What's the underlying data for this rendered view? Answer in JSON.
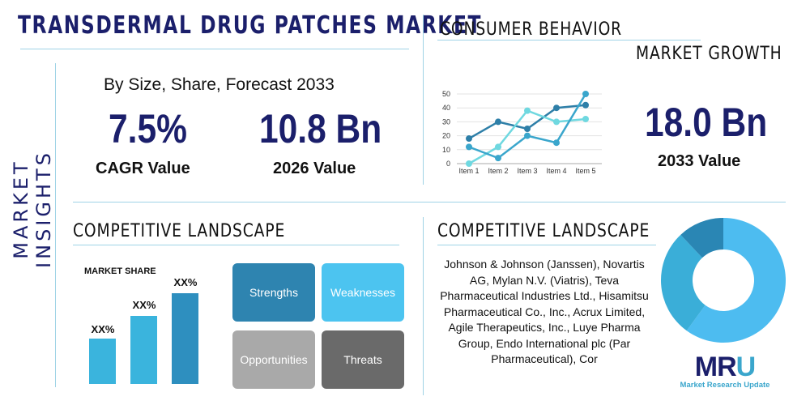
{
  "title": "TRANSDERMAL DRUG PATCHES MARKET",
  "side_label": "MARKET INSIGHTS",
  "subtitle": "By Size, Share, Forecast 2033",
  "cagr": {
    "value": "7.5%",
    "label": "CAGR Value"
  },
  "value2026": {
    "value": "10.8 Bn",
    "label": "2026 Value"
  },
  "consumer": {
    "title": "CONSUMER BEHAVIOR",
    "subtitle": "MARKET GROWTH"
  },
  "value2033": {
    "value": "18.0 Bn",
    "label": "2033 Value"
  },
  "competitive_left": {
    "title": "COMPETITIVE LANDSCAPE",
    "market_share_label": "MARKET SHARE",
    "bar_labels": [
      "XX%",
      "XX%",
      "XX%"
    ]
  },
  "swot": {
    "strengths": "Strengths",
    "weaknesses": "Weaknesses",
    "opportunities": "Opportunities",
    "threats": "Threats"
  },
  "competitive_right": {
    "title": "COMPETITIVE LANDSCAPE",
    "text": "Johnson & Johnson (Janssen), Novartis AG, Mylan N.V. (Viatris), Teva Pharmaceutical Industries Ltd., Hisamitsu Pharmaceutical Co., Inc., Acrux Limited, Agile Therapeutics, Inc., Luye Pharma Group, Endo International plc (Par Pharmaceutical), Cor"
  },
  "logo": {
    "text": "MRU",
    "caption": "Market Research Update"
  },
  "colors": {
    "navy": "#1b1f6b",
    "dark": "#2e7fa8",
    "mid": "#3aa6cc",
    "light": "#6fd8e0",
    "sky": "#4dbcf0"
  },
  "chart_data": [
    {
      "type": "line",
      "categories": [
        "Item 1",
        "Item 2",
        "Item 3",
        "Item 4",
        "Item 5"
      ],
      "ylim": [
        0,
        50
      ],
      "yticks": [
        0,
        10,
        20,
        30,
        40,
        50
      ],
      "series": [
        {
          "values": [
            18,
            30,
            25,
            40,
            42
          ],
          "color": "#2e7fa8"
        },
        {
          "values": [
            0,
            12,
            38,
            30,
            32
          ],
          "color": "#6fd8e0"
        },
        {
          "values": [
            12,
            4,
            20,
            15,
            50
          ],
          "color": "#3aa6cc"
        }
      ]
    },
    {
      "type": "pie",
      "donut": true,
      "values": [
        60,
        28,
        12
      ],
      "colors": [
        "#4dbcf0",
        "#3aaed8",
        "#2a86b4"
      ]
    },
    {
      "type": "bar",
      "values": [
        1,
        1.5,
        2
      ],
      "colors": [
        "#3ab4dd",
        "#3ab4dd",
        "#2e8fbf"
      ]
    }
  ]
}
